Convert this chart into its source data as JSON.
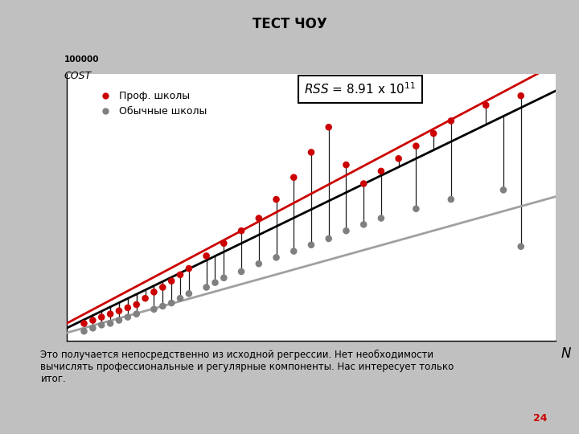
{
  "title": "ТЕСТ ЧОУ",
  "slide_bg": "#c0c0c0",
  "plot_bg": "#ffffff",
  "ylabel": "COST",
  "ylabel2": "100000",
  "xlabel": "N",
  "legend_prof": "Проф. школы",
  "legend_reg": "Обычные школы",
  "page_num": "24",
  "prof_color": "#cc0000",
  "reg_color": "#808080",
  "line_overall_color": "#000000",
  "line_prof_color": "#cc0000",
  "line_reg_color": "#a0a0a0",
  "vertical_line_color": "#1a1a1a",
  "bottom_text": "Это получается непосредственно из исходной регрессии. Нет необходимости\nвычислять профессиональные и регулярные компоненты. Нас интересует только\nитог.",
  "prof_n": [
    1.0,
    1.5,
    2.0,
    2.5,
    3.0,
    3.5,
    4.0,
    4.5,
    5.0,
    5.5,
    6.0,
    6.5,
    7.0,
    8.0,
    9.0,
    10.0,
    11.0,
    12.0,
    13.0,
    14.0,
    15.0,
    16.0,
    17.0,
    18.0,
    19.0,
    20.0,
    21.0,
    22.0,
    24.0,
    26.0
  ],
  "prof_y": [
    0.55,
    0.65,
    0.75,
    0.85,
    0.95,
    1.05,
    1.15,
    1.35,
    1.55,
    1.7,
    1.9,
    2.1,
    2.3,
    2.7,
    3.1,
    3.5,
    3.9,
    4.5,
    5.2,
    6.0,
    6.8,
    5.6,
    5.0,
    5.4,
    5.8,
    6.2,
    6.6,
    7.0,
    7.5,
    7.8
  ],
  "reg_n": [
    1.0,
    1.5,
    2.0,
    2.5,
    3.0,
    3.5,
    4.0,
    5.0,
    5.5,
    6.0,
    6.5,
    7.0,
    8.0,
    8.5,
    9.0,
    10.0,
    11.0,
    12.0,
    13.0,
    14.0,
    15.0,
    16.0,
    17.0,
    18.0,
    20.0,
    22.0,
    25.0,
    26.0
  ],
  "reg_y": [
    0.3,
    0.4,
    0.5,
    0.55,
    0.65,
    0.75,
    0.85,
    1.0,
    1.1,
    1.2,
    1.35,
    1.5,
    1.7,
    1.85,
    2.0,
    2.2,
    2.45,
    2.65,
    2.85,
    3.05,
    3.25,
    3.5,
    3.7,
    3.9,
    4.2,
    4.5,
    4.8,
    3.0
  ],
  "overall_slope": 0.27,
  "overall_intercept": 0.4,
  "prof_slope": 0.295,
  "prof_intercept": 0.55,
  "reg_slope": 0.155,
  "reg_intercept": 0.25,
  "xlim": [
    0,
    28
  ],
  "ylim": [
    0,
    8.5
  ]
}
